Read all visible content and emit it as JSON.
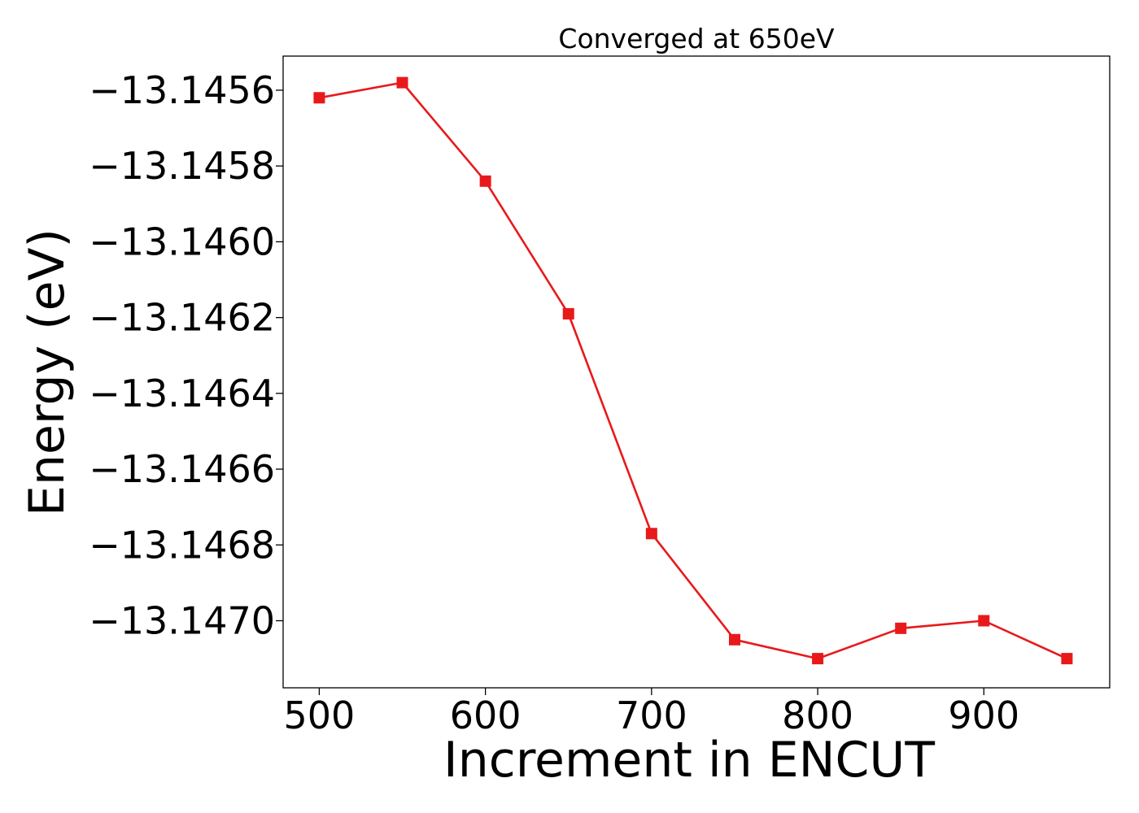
{
  "chart_data": {
    "type": "line",
    "title": "Converged at 650eV",
    "xlabel": "Increment in ENCUT",
    "ylabel": "Energy (eV)",
    "x": [
      500,
      550,
      600,
      650,
      700,
      750,
      800,
      850,
      900,
      950
    ],
    "series": [
      {
        "name": "",
        "values": [
          -13.14562,
          -13.14558,
          -13.14584,
          -13.14619,
          -13.14677,
          -13.14705,
          -13.1471,
          -13.14702,
          -13.147,
          -13.1471
        ],
        "color": "#e8191b",
        "marker": "square"
      }
    ],
    "xticks": [
      500,
      600,
      700,
      800,
      900
    ],
    "xtick_labels": [
      "500",
      "600",
      "700",
      "800",
      "900"
    ],
    "yticks": [
      -13.1456,
      -13.1458,
      -13.146,
      -13.1462,
      -13.1464,
      -13.1466,
      -13.1468,
      -13.147
    ],
    "ytick_labels": [
      "−13.1456",
      "−13.1458",
      "−13.1460",
      "−13.1462",
      "−13.1464",
      "−13.1466",
      "−13.1468",
      "−13.1470"
    ],
    "xlim": [
      478.25,
      975.75
    ],
    "ylim": [
      -13.147177,
      -13.14551
    ],
    "grid": false,
    "legend": "none"
  }
}
